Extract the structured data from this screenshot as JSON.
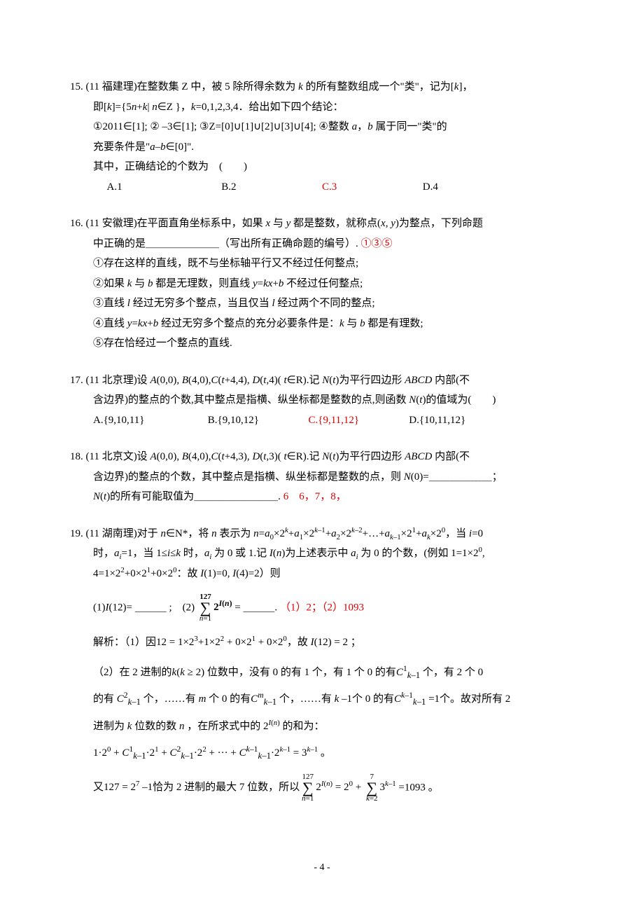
{
  "q15": {
    "line1": "15. (11 福建理)在整数集 Z 中，被 5 除所得余数为 <i>k</i> 的所有整数组成一个\"类\"，记为[<i>k</i>]，",
    "line2": "即[<i>k</i>]={5<i>n</i>+<i>k</i>| <i>n</i>∈Z }，<i>k</i>=0,1,2,3,4．给出如下四个结论：",
    "line3": "①2011∈[1]; ② –3∈[1]; ③Z=[0]∪[1]∪[2]∪[3]∪[4]; ④整数 <i>a</i>，<i>b</i> 属于同一\"类\"的",
    "line4": "充要条件是\"<i>a</i>–<i>b</i>∈[0]\".",
    "line5": "其中，正确结论的个数为　(　　)",
    "optA": "A.1",
    "optB": "B.2",
    "optC": "C.3",
    "optD": "D.4"
  },
  "q16": {
    "line1": "16. (11 安徽理)在平面直角坐标系中，如果 <i>x</i> 与 <i>y</i> 都是整数，就称点(<i>x</i>, <i>y</i>)为整点，下列命题",
    "line2_a": "中正确的是＿＿＿＿＿＿＿（写出所有正确命题的编号）. ",
    "line2_ans": "①③⑤",
    "c1": "①存在这样的直线，既不与坐标轴平行又不经过任何整点;",
    "c2": "②如果 <i>k</i> 与 <i>b</i> 都是无理数，则直线 <i>y</i>=<i>kx</i>+<i>b</i> 不经过任何整点;",
    "c3": "③直线 <i>l</i> 经过无穷多个整点，当且仅当 <i>l</i> 经过两个不同的整点;",
    "c4": "④直线 <i>y</i>=<i>kx</i>+<i>b</i> 经过无穷多个整点的充分必要条件是：<i>k</i> 与 <i>b</i> 都是有理数;",
    "c5": "⑤存在恰经过一个整点的直线."
  },
  "q17": {
    "line1": "17. (11 北京理)设 <i>A</i>(0,0), <i>B</i>(4,0),<i>C</i>(<i>t</i>+4,4), <i>D</i>(<i>t</i>,4)( <i>t</i>∈R).记 <i>N</i>(<i>t</i>)为平行四边形 <i>ABCD</i> 内部(不",
    "line2": "含边界)的整点的个数,其中整点是指横、纵坐标都是整数的点,则函数 <i>N</i>(<i>t</i>)的值域为(　　)",
    "optA": "A.{9,10,11}",
    "optB": "B.{9,10,12}",
    "optC": "C.{9,11,12}",
    "optD": "D.{10,11,12}"
  },
  "q18": {
    "line1": "18. (11 北京文)设 <i>A</i>(0,0), <i>B</i>(4,0),<i>C</i>(<i>t</i>+4,3), <i>D</i>(<i>t</i>,3)( <i>t</i>∈R).记 <i>N</i>(<i>t</i>)为平行四边形 <i>ABCD</i> 内部(不",
    "line2": "含边界)的整点的个数，其中整点是指横、纵坐标都是整数的点，则 <i>N</i>(0)=＿＿＿＿＿＿；",
    "line3_a": "<i>N</i>(<i>t</i>)的所有可能取值为＿＿＿＿＿＿＿＿. ",
    "line3_ans": "6　6，7，8，"
  },
  "q19": {
    "line1": "19. (11 湖南理)对于 <i>n</i>∈N*，将 <i>n</i> 表示为 <i>n</i>=<i>a</i><sub>0</sub>×2<sup><i>k</i></sup>+<i>a</i><sub>1</sub>×2<sup><i>k</i>–1</sup>+<i>a</i><sub>2</sub>×2<sup><i>k</i>–2</sup>+…+<i>a</i><sub><i>k</i>–1</sub>×2<sup>1</sup>+<i>a</i><sub><i>k</i></sub>×2<sup>0</sup>，当 <i>i</i>=0",
    "line2": "时，<i>a<sub>i</sub></i>=1，当 1≤<i>i</i>≤<i>k</i> 时，<i>a<sub>i</sub></i> 为 0 或 1.记 <i>I</i>(<i>n</i>)为上述表示中 <i>a<sub>i</sub></i> 为 0 的个数，(例如 1=1×2<sup>0</sup>,",
    "line3": "4=1×2<sup>2</sup>+0×2<sup>1</sup>+0×2<sup>0</sup>：故 <i>I</i>(1)=0, <i>I</i>(4)=2）则",
    "p1_a": "(1)<i>I</i>(12)=  ＿＿＿  ;　(2) ",
    "sum_top": "127",
    "sum_bot": "<i>n</i>=1",
    "sum_expr": "<b>2</b><sup class=\"primary-sup\"><b><i>I</i>(<i>n</i>)</b></sup>",
    "p1_b": " = ＿＿＿. ",
    "p1_ans": "（1）2；（2）1093",
    "sol1": "解析：（1）因12 = 1×2<sup>3</sup>+1×2<sup>2</sup> + 0×2<sup>1</sup> + 0×2<sup>0</sup>，故 <i>I</i>(12) = 2 ；",
    "sol2": "（2）在 2 进制的<i>k</i>(<i>k</i> ≥ 2) 位数中，没有 0 的有 1 个，有 1 个 0 的有<i>C</i><sup class=\"primary-sup\">1</sup><sub class=\"nested-sub\"><i>k</i>–1</sub> 个，有 2 个 0",
    "sol3": "的有 <i>C</i><sup class=\"primary-sup\">2</sup><sub class=\"nested-sub\"><i>k</i>–1</sub> 个，……有 <i>m</i> 个 0 的有<i>C</i><sup class=\"primary-sup\"><i>m</i></sup><sub class=\"nested-sub\"><i>k</i>–1</sub> 个，……有 <i>k</i> –1个 0 的有<i>C</i><sup class=\"primary-sup\"><i>k</i>–1</sup><sub class=\"nested-sub\"><i>k</i>–1</sub> =1个。故对所有 2",
    "sol4": "进制为 <i>k</i> 位数的数 <i>n</i> ，在所求式中的 2<sup><i>I</i>(<i>n</i>)</sup> 的和为：",
    "sol5": "1·2<sup>0</sup> + <i>C</i><sup class=\"primary-sup\">1</sup><sub class=\"nested-sub\"><i>k</i>–1</sub>·2<sup>1</sup> + <i>C</i><sup class=\"primary-sup\">2</sup><sub class=\"nested-sub\"><i>k</i>–1</sub>·2<sup>2</sup> + ··· + <i>C</i><sup class=\"primary-sup\"><i>k</i>–1</sup><sub class=\"nested-sub\"><i>k</i>–1</sub>·2<sup><i>k</i>–1</sup> = 3<sup><i>k</i>–1</sup> 。",
    "sol6_a": "又127 = 2<sup>7</sup> –1恰为 2 进制的最大 7 位数，所以",
    "sum2_top": "127",
    "sum2_bot": "<i>n</i>=1",
    "sum2_expr": "2<sup><i>I</i>(<i>n</i>)</sup>",
    "sol6_b": " = 2<sup>0</sup> + ",
    "sum3_top": "7",
    "sum3_bot": "<i>k</i>=2",
    "sum3_expr": "3<sup><i>k</i>–1</sup>",
    "sol6_c": " =1093 。"
  },
  "footer": "- 4 -"
}
